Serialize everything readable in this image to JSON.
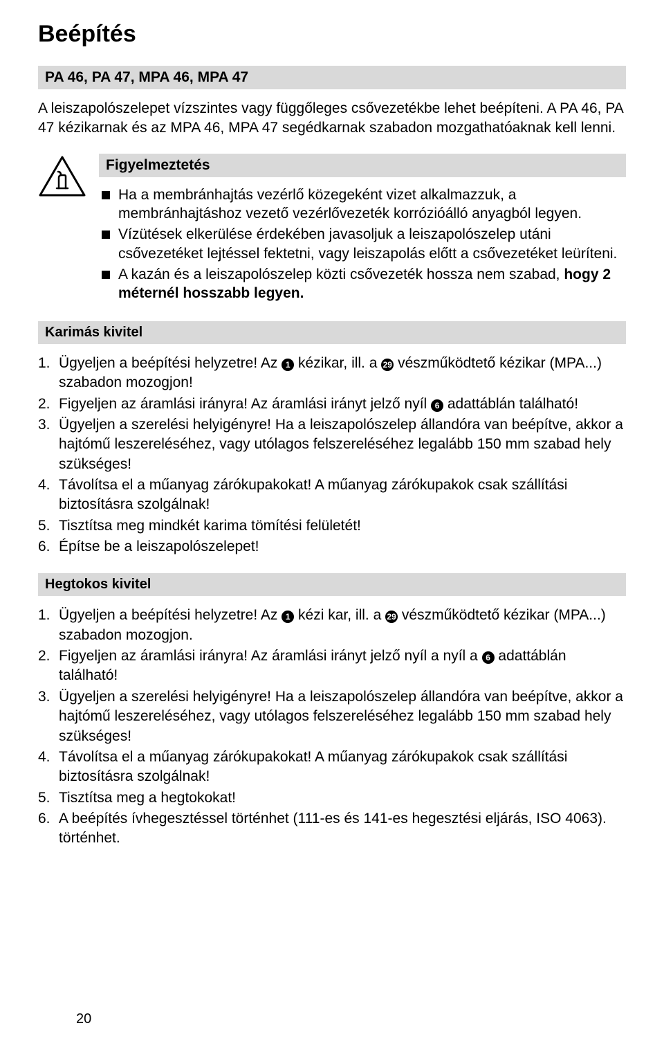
{
  "page": {
    "title": "Beépítés",
    "subtitle": "PA 46, PA 47, MPA 46, MPA 47",
    "intro": "A leiszapolószelepet vízszintes vagy függőleges csővezetékbe lehet beépíteni.\nA PA 46, PA 47 kézikarnak és az MPA 46, MPA 47 segédkarnak szabadon mozgathatóaknak kell lenni.",
    "page_number": "20"
  },
  "warning": {
    "heading": "Figyelmeztetés",
    "items": [
      "Ha a membránhajtás vezérlő közegeként vizet alkalmazzuk, a membránhajtáshoz vezető vezérlővezeték korrózióálló anyagból legyen.",
      "Vízütések elkerülése érdekében javasoljuk a leiszapolószelep utáni csővezetéket lejtéssel fektetni, vagy leiszapolás előtt a csővezetéket leüríteni.",
      "A kazán és a leiszapolószelep közti csővezeték hossza nem szabad, <b>hogy 2 méternél hosszabb legyen.</b>"
    ]
  },
  "section_karimas": {
    "heading": "Karimás kivitel",
    "items": [
      {
        "num": "1.",
        "text": "Ügyeljen a beépítési helyzetre! Az {c1} kézikar, ill. a {c29} vészműködtető kézikar (MPA...) szabadon mozogjon!"
      },
      {
        "num": "2.",
        "text": "Figyeljen az áramlási irányra! Az áramlási irányt jelző nyíl {c6} adattáblán található!"
      },
      {
        "num": "3.",
        "text": "Ügyeljen a szerelési helyigényre! Ha a leiszapolószelep állandóra van beépítve, akkor a hajtómű leszereléséhez, vagy utólagos felszereléséhez legalább 150 mm szabad hely szükséges!"
      },
      {
        "num": "4.",
        "text": "Távolítsa el a műanyag zárókupakokat! A műanyag zárókupakok csak szállítási biztosításra szolgálnak!"
      },
      {
        "num": "5.",
        "text": "Tisztítsa meg mindkét karima tömítési felületét!"
      },
      {
        "num": "6.",
        "text": "Építse be a leiszapolószelepet!"
      }
    ]
  },
  "section_hegtokos": {
    "heading": "Hegtokos kivitel",
    "items": [
      {
        "num": "1.",
        "text": "Ügyeljen a beépítési helyzetre! Az {c1} kézi kar, ill. a {c29} vészműködtető kézikar (MPA...) szabadon mozogjon."
      },
      {
        "num": "2.",
        "text": "Figyeljen az áramlási irányra! Az áramlási irányt jelző nyíl a nyíl a {c6} adattáblán található!"
      },
      {
        "num": "3.",
        "text": "Ügyeljen a szerelési helyigényre! Ha a leiszapolószelep állandóra van beépítve, akkor a hajtómű leszereléséhez, vagy utólagos felszereléséhez legalább 150 mm szabad hely szükséges!"
      },
      {
        "num": "4.",
        "text": "Távolítsa el a műanyag zárókupakokat! A műanyag zárókupakok csak szállítási biztosításra szolgálnak!"
      },
      {
        "num": "5.",
        "text": "Tisztítsa meg a hegtokokat!"
      },
      {
        "num": "6.",
        "text": "A beépítés ívhegesztéssel történhet (111-es és 141-es hegesztési eljárás, ISO 4063). történhet."
      }
    ]
  },
  "circled": {
    "c1": "1",
    "c6": "6",
    "c29": "29"
  },
  "colors": {
    "bar_bg": "#d9d9d9",
    "text": "#000000",
    "page_bg": "#ffffff"
  },
  "typography": {
    "title_fontsize": 34,
    "body_fontsize": 21,
    "font_family": "Arial"
  }
}
